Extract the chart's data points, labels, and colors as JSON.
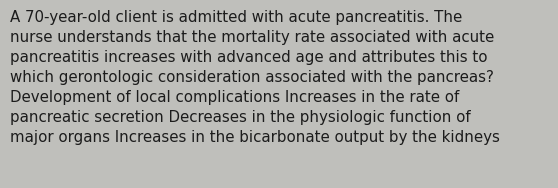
{
  "text": "A 70-year-old client is admitted with acute pancreatitis. The\nnurse understands that the mortality rate associated with acute\npancreatitis increases with advanced age and attributes this to\nwhich gerontologic consideration associated with the pancreas?\nDevelopment of local complications Increases in the rate of\npancreatic secretion Decreases in the physiologic function of\nmajor organs Increases in the bicarbonate output by the kidneys",
  "background_color": "#bfbfbb",
  "text_color": "#1c1c1c",
  "font_size": 10.8,
  "fig_width": 5.58,
  "fig_height": 1.88,
  "dpi": 100
}
